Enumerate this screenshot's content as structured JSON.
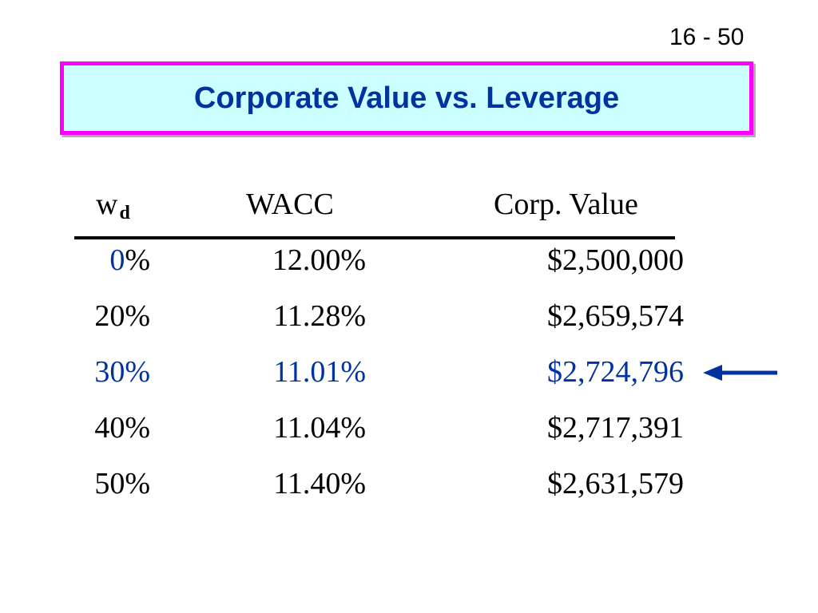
{
  "slide_number": "16 - 50",
  "title": "Corporate Value vs. Leverage",
  "table": {
    "headers": {
      "wd_main": "w",
      "wd_sub": "d",
      "wacc": "WACC",
      "value": "Corp. Value"
    },
    "rows": [
      {
        "wd_num": "0",
        "wd_pct": "%",
        "wacc": "12.00%",
        "value": "$2,500,000"
      },
      {
        "wd": "20%",
        "wacc": "11.28%",
        "value": "$2,659,574"
      },
      {
        "wd": "30%",
        "wacc": "11.01%",
        "value": "$2,724,796",
        "highlighted": true
      },
      {
        "wd": "40%",
        "wacc": "11.04%",
        "value": "$2,717,391"
      },
      {
        "wd": "50%",
        "wacc": "11.40%",
        "value": "$2,631,579"
      }
    ]
  },
  "colors": {
    "title_text": "#0033a0",
    "title_bg": "#ccffff",
    "title_border": "#ff00ff",
    "highlight": "#0033a0"
  },
  "arrow_icon": "left-arrow-icon"
}
